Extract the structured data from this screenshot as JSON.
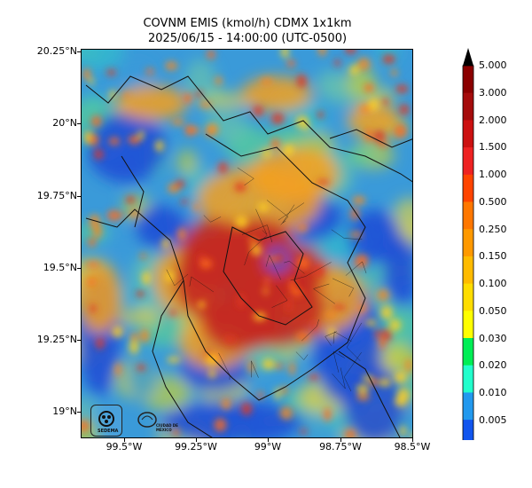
{
  "header": {
    "title": "COVNM EMIS (kmol/h) CDMX 1x1km",
    "subtitle": "2025/06/15 - 14:00:00 (UTC-0500)"
  },
  "axes": {
    "lat_ticks": [
      "20.25°N",
      "20°N",
      "19.75°N",
      "19.5°N",
      "19.25°N",
      "19°N"
    ],
    "lon_ticks": [
      "99.5°W",
      "99.25°W",
      "99°W",
      "98.75°W",
      "98.5°W"
    ]
  },
  "colorbar": {
    "labels": [
      "5.000",
      "3.000",
      "2.000",
      "1.500",
      "1.000",
      "0.500",
      "0.250",
      "0.150",
      "0.100",
      "0.050",
      "0.030",
      "0.020",
      "0.010",
      "0.005"
    ],
    "colors": [
      "#8b0000",
      "#a50c0c",
      "#cc1111",
      "#ee2222",
      "#ff4400",
      "#ff7700",
      "#ff9900",
      "#ffbb00",
      "#ffdd00",
      "#ffff00",
      "#00ee55",
      "#22ffcc",
      "#2299ee",
      "#1155ee",
      "#0022dd"
    ],
    "extend_top_color": "#000000",
    "extend_bottom_color": "#0000ff"
  },
  "logos": {
    "sedema": "SEDEMA",
    "cdmx": "CIUDAD DE MÉXICO"
  }
}
